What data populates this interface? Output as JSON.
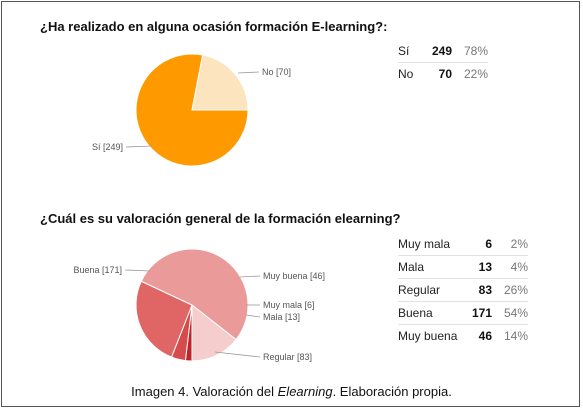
{
  "chart_data": [
    {
      "type": "pie",
      "title": "¿Ha realizado en alguna ocasión formación E-learning?:",
      "categories": [
        "Sí",
        "No"
      ],
      "values": [
        249,
        70
      ],
      "percents": [
        "78%",
        "22%"
      ],
      "slice_labels": [
        "Sí [249]",
        "No [70]"
      ],
      "colors": [
        "#ff9900",
        "#fce5be"
      ]
    },
    {
      "type": "pie",
      "title": "¿Cuál es su valoración general de la formación elearning?",
      "categories": [
        "Muy mala",
        "Mala",
        "Regular",
        "Buena",
        "Muy buena"
      ],
      "values": [
        6,
        13,
        83,
        171,
        46
      ],
      "percents": [
        "2%",
        "4%",
        "26%",
        "54%",
        "14%"
      ],
      "slice_labels": [
        "Muy mala [6]",
        "Mala [13]",
        "Regular [83]",
        "Buena [171]",
        "Muy buena [46]"
      ],
      "colors": [
        "#cc0000",
        "#e06666",
        "#e06666",
        "#ea9999",
        "#f4cccc"
      ],
      "slice_colors": [
        "#c0242a",
        "#d64b4b",
        "#e06666",
        "#eb9a9a",
        "#f5cdcd"
      ]
    }
  ],
  "caption": {
    "prefix": "Imagen 4. Valoración del ",
    "emphasis": "Elearning",
    "suffix": ". Elaboración propia."
  }
}
